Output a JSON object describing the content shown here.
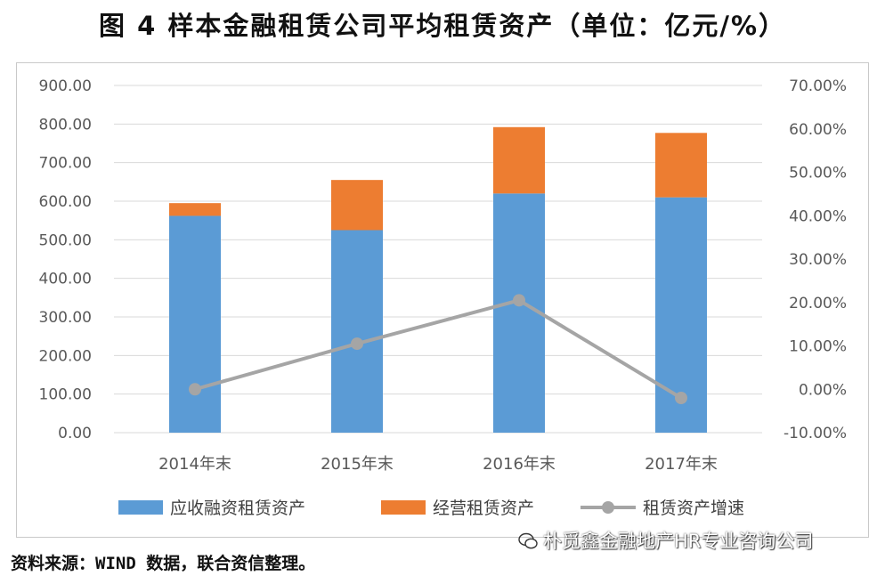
{
  "title": "图 4 样本金融租赁公司平均租赁资产（单位：亿元/%）",
  "source": "资料来源：WIND 数据，联合资信整理。",
  "watermark": "朴觅鑫金融地产HR专业咨询公司",
  "colors": {
    "series1": "#5b9bd5",
    "series2": "#ed7d31",
    "series3": "#a5a5a5",
    "grid": "#d9d9d9"
  },
  "chart_data": {
    "type": "bar",
    "categories": [
      "2014年末",
      "2015年末",
      "2016年末",
      "2017年末"
    ],
    "series": [
      {
        "name": "应收融资租赁资产",
        "kind": "bar",
        "axis": "left",
        "stack": "a",
        "values": [
          562,
          525,
          620,
          610
        ]
      },
      {
        "name": "经营租赁资产",
        "kind": "bar",
        "axis": "left",
        "stack": "a",
        "values": [
          33,
          130,
          172,
          167
        ]
      },
      {
        "name": "租赁资产增速",
        "kind": "line",
        "axis": "right",
        "values": [
          0.0,
          10.5,
          20.5,
          -2.0
        ]
      }
    ],
    "y_left": {
      "min": 0,
      "max": 900,
      "ticks": [
        "0.00",
        "100.00",
        "200.00",
        "300.00",
        "400.00",
        "500.00",
        "600.00",
        "700.00",
        "800.00",
        "900.00"
      ]
    },
    "y_right": {
      "min": -10,
      "max": 70,
      "ticks": [
        "-10.00%",
        "0.00%",
        "10.00%",
        "20.00%",
        "30.00%",
        "40.00%",
        "50.00%",
        "60.00%",
        "70.00%"
      ]
    },
    "grid": true,
    "legend": "bottom"
  }
}
